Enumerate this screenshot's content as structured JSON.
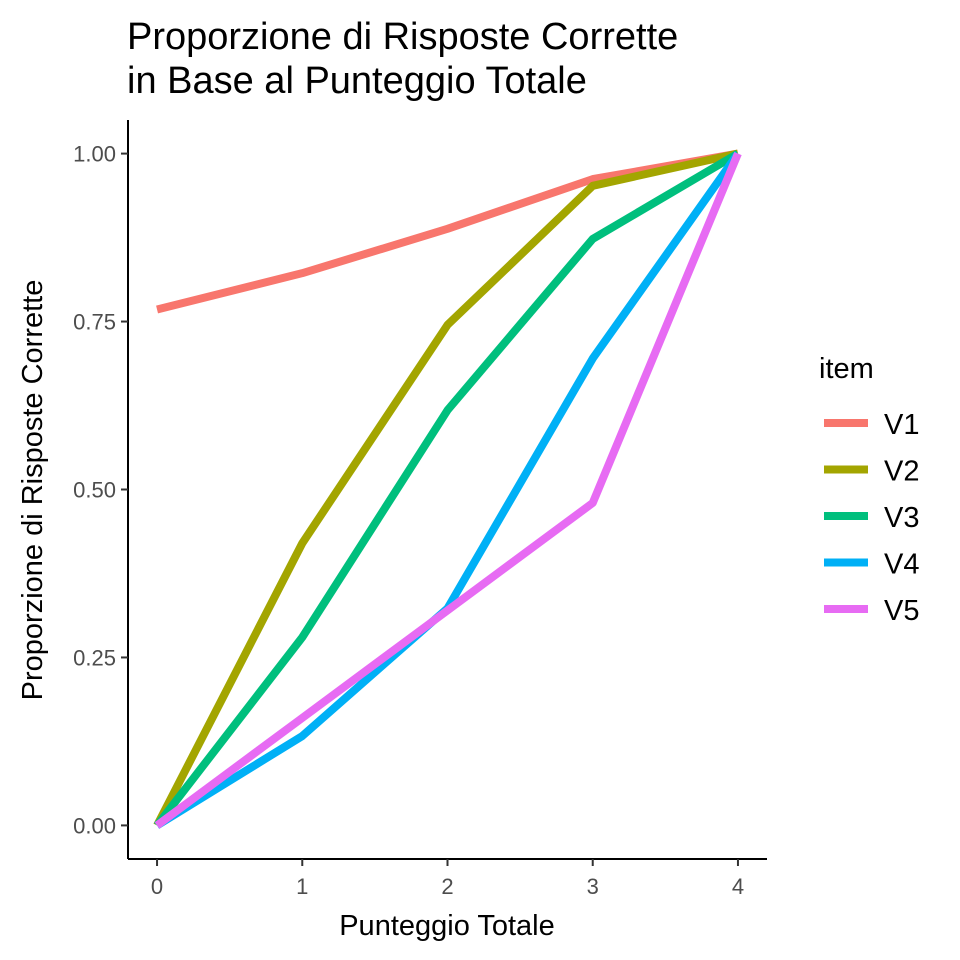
{
  "chart_data": {
    "type": "line",
    "title_lines": [
      "Proporzione di Risposte Corrette",
      "in Base al Punteggio Totale"
    ],
    "xlabel": "Punteggio Totale",
    "ylabel": "Proporzione di Risposte Corrette",
    "x": [
      0,
      1,
      2,
      3,
      4
    ],
    "xlim": [
      -0.2,
      4.2
    ],
    "ylim": [
      -0.05,
      1.05
    ],
    "x_ticks": [
      0,
      1,
      2,
      3,
      4
    ],
    "x_tick_labels": [
      "0",
      "1",
      "2",
      "3",
      "4"
    ],
    "y_ticks": [
      0,
      0.25,
      0.5,
      0.75,
      1.0
    ],
    "y_tick_labels": [
      "0.00",
      "0.25",
      "0.50",
      "0.75",
      "1.00"
    ],
    "grid": false,
    "legend": {
      "title": "item",
      "position": "right"
    },
    "series": [
      {
        "name": "V1",
        "color": "#F8766D",
        "values": [
          0.768,
          0.822,
          0.888,
          0.962,
          1.0
        ]
      },
      {
        "name": "V2",
        "color": "#A3A500",
        "values": [
          0.0,
          0.42,
          0.745,
          0.952,
          1.0
        ]
      },
      {
        "name": "V3",
        "color": "#00BF7D",
        "values": [
          0.0,
          0.28,
          0.618,
          0.873,
          1.0
        ]
      },
      {
        "name": "V4",
        "color": "#00B0F6",
        "values": [
          0.0,
          0.133,
          0.323,
          0.695,
          1.0
        ]
      },
      {
        "name": "V5",
        "color": "#E76BF3",
        "values": [
          0.0,
          0.16,
          0.32,
          0.48,
          1.0
        ]
      }
    ]
  }
}
